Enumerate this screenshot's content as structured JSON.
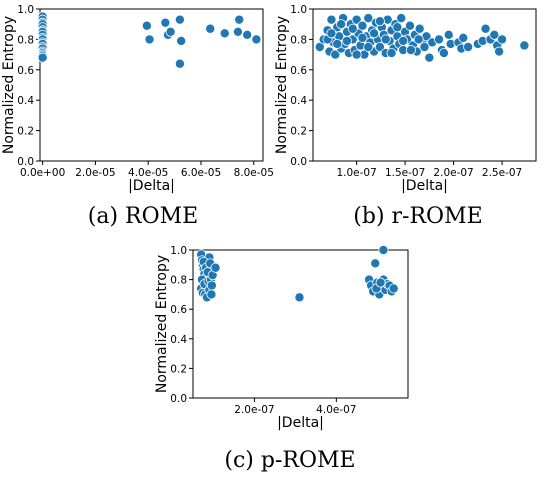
{
  "chart_data": [
    {
      "type": "scatter",
      "caption": "(a) ROME",
      "xlabel": "|Delta|",
      "ylabel": "Normalized Entropy",
      "xlim": [
        -1e-06,
        8.35e-05
      ],
      "ylim": [
        0.0,
        1.0
      ],
      "xticks": [
        0.0,
        2e-05,
        4e-05,
        6e-05,
        8e-05
      ],
      "xtick_labels": [
        "0.0e+00",
        "2.0e-05",
        "4.0e-05",
        "6.0e-05",
        "8.0e-05"
      ],
      "yticks": [
        0.0,
        0.2,
        0.4,
        0.6,
        0.8,
        1.0
      ],
      "ytick_labels": [
        "0.0",
        "0.2",
        "0.4",
        "0.6",
        "0.8",
        "1.0"
      ],
      "color": "#1f77b4",
      "points": [
        [
          0.0,
          0.95
        ],
        [
          0.0,
          0.93
        ],
        [
          0.0,
          0.91
        ],
        [
          0.0,
          0.9
        ],
        [
          0.0,
          0.88
        ],
        [
          0.0,
          0.86
        ],
        [
          0.0,
          0.85
        ],
        [
          0.0,
          0.83
        ],
        [
          0.0,
          0.81
        ],
        [
          0.0,
          0.8
        ],
        [
          0.0,
          0.78
        ],
        [
          0.0,
          0.77
        ],
        [
          0.0,
          0.75
        ],
        [
          0.0,
          0.74
        ],
        [
          0.0,
          0.72
        ],
        [
          0.0,
          0.71
        ],
        [
          0.0,
          0.7
        ],
        [
          0.0,
          0.69
        ],
        [
          0.0,
          0.68
        ],
        [
          3.95e-05,
          0.89
        ],
        [
          4.05e-05,
          0.8
        ],
        [
          4.65e-05,
          0.91
        ],
        [
          4.75e-05,
          0.83
        ],
        [
          4.85e-05,
          0.85
        ],
        [
          5.2e-05,
          0.93
        ],
        [
          5.25e-05,
          0.79
        ],
        [
          5.2e-05,
          0.64
        ],
        [
          6.35e-05,
          0.87
        ],
        [
          6.9e-05,
          0.84
        ],
        [
          7.4e-05,
          0.85
        ],
        [
          7.45e-05,
          0.93
        ],
        [
          7.75e-05,
          0.83
        ],
        [
          8.1e-05,
          0.8
        ]
      ]
    },
    {
      "type": "scatter",
      "caption": "(b) r-ROME",
      "xlabel": "|Delta|",
      "ylabel": "Normalized Entropy",
      "xlim": [
        5.5e-08,
        2.85e-07
      ],
      "ylim": [
        0.0,
        1.0
      ],
      "xticks": [
        1e-07,
        1.5e-07,
        2e-07,
        2.5e-07
      ],
      "xtick_labels": [
        "1.0e-07",
        "1.5e-07",
        "2.0e-07",
        "2.5e-07"
      ],
      "yticks": [
        0.0,
        0.2,
        0.4,
        0.6,
        0.8,
        1.0
      ],
      "ytick_labels": [
        "0.0",
        "0.2",
        "0.4",
        "0.6",
        "0.8",
        "1.0"
      ],
      "color": "#1f77b4",
      "points": [
        [
          6.2e-08,
          0.75
        ],
        [
          6.6e-08,
          0.8
        ],
        [
          7e-08,
          0.86
        ],
        [
          7.2e-08,
          0.72
        ],
        [
          7.4e-08,
          0.93
        ],
        [
          7.6e-08,
          0.78
        ],
        [
          7.8e-08,
          0.7
        ],
        [
          8e-08,
          0.88
        ],
        [
          8.2e-08,
          0.82
        ],
        [
          8.4e-08,
          0.74
        ],
        [
          8.6e-08,
          0.94
        ],
        [
          8.8e-08,
          0.77
        ],
        [
          9e-08,
          0.85
        ],
        [
          9.2e-08,
          0.71
        ],
        [
          9.4e-08,
          0.9
        ],
        [
          9.6e-08,
          0.8
        ],
        [
          9.8e-08,
          0.73
        ],
        [
          1e-07,
          0.93
        ],
        [
          1.02e-07,
          0.84
        ],
        [
          1.04e-07,
          0.76
        ],
        [
          1.06e-07,
          0.89
        ],
        [
          1.08e-07,
          0.7
        ],
        [
          1.1e-07,
          0.82
        ],
        [
          1.12e-07,
          0.94
        ],
        [
          1.14e-07,
          0.78
        ],
        [
          1.16e-07,
          0.86
        ],
        [
          1.18e-07,
          0.72
        ],
        [
          1.2e-07,
          0.91
        ],
        [
          1.22e-07,
          0.8
        ],
        [
          1.24e-07,
          0.75
        ],
        [
          1.26e-07,
          0.88
        ],
        [
          1.28e-07,
          0.83
        ],
        [
          1.3e-07,
          0.71
        ],
        [
          1.32e-07,
          0.93
        ],
        [
          1.34e-07,
          0.79
        ],
        [
          1.36e-07,
          0.86
        ],
        [
          1.38e-07,
          0.74
        ],
        [
          1.4e-07,
          0.9
        ],
        [
          1.42e-07,
          0.82
        ],
        [
          1.44e-07,
          0.77
        ],
        [
          1.46e-07,
          0.94
        ],
        [
          1.48e-07,
          0.73
        ],
        [
          1.5e-07,
          0.85
        ],
        [
          1.52e-07,
          0.8
        ],
        [
          1.55e-07,
          0.89
        ],
        [
          1.58e-07,
          0.76
        ],
        [
          1.6e-07,
          0.83
        ],
        [
          1.62e-07,
          0.72
        ],
        [
          1.65e-07,
          0.87
        ],
        [
          1.68e-07,
          0.79
        ],
        [
          1.7e-07,
          0.75
        ],
        [
          1.72e-07,
          0.82
        ],
        [
          1.75e-07,
          0.68
        ],
        [
          1.78e-07,
          0.78
        ],
        [
          1.85e-07,
          0.8
        ],
        [
          1.88e-07,
          0.73
        ],
        [
          1.9e-07,
          0.71
        ],
        [
          1.95e-07,
          0.83
        ],
        [
          1.97e-07,
          0.77
        ],
        [
          2.05e-07,
          0.78
        ],
        [
          2.08e-07,
          0.74
        ],
        [
          2.1e-07,
          0.81
        ],
        [
          2.15e-07,
          0.75
        ],
        [
          2.25e-07,
          0.77
        ],
        [
          2.3e-07,
          0.79
        ],
        [
          2.33e-07,
          0.87
        ],
        [
          2.38e-07,
          0.8
        ],
        [
          2.42e-07,
          0.83
        ],
        [
          2.45e-07,
          0.76
        ],
        [
          2.47e-07,
          0.72
        ],
        [
          2.5e-07,
          0.8
        ],
        [
          2.73e-07,
          0.76
        ],
        [
          7e-08,
          0.8
        ],
        [
          7.4e-08,
          0.84
        ],
        [
          8e-08,
          0.77
        ],
        [
          8.4e-08,
          0.9
        ],
        [
          9e-08,
          0.79
        ],
        [
          9.6e-08,
          0.87
        ],
        [
          1e-07,
          0.7
        ],
        [
          1.06e-07,
          0.81
        ],
        [
          1.12e-07,
          0.75
        ],
        [
          1.18e-07,
          0.84
        ],
        [
          1.24e-07,
          0.92
        ],
        [
          1.3e-07,
          0.8
        ],
        [
          1.36e-07,
          0.71
        ],
        [
          1.42e-07,
          0.88
        ],
        [
          1.48e-07,
          0.79
        ],
        [
          1.56e-07,
          0.73
        ],
        [
          1.64e-07,
          0.8
        ]
      ]
    },
    {
      "type": "scatter",
      "caption": "(c) p-ROME",
      "xlabel": "|Delta|",
      "ylabel": "Normalized Entropy",
      "xlim": [
        5e-08,
        5.75e-07
      ],
      "ylim": [
        0.0,
        1.0
      ],
      "xticks": [
        2e-07,
        4e-07
      ],
      "xtick_labels": [
        "2.0e-07",
        "4.0e-07"
      ],
      "yticks": [
        0.0,
        0.2,
        0.4,
        0.6,
        0.8,
        1.0
      ],
      "ytick_labels": [
        "0.0",
        "0.2",
        "0.4",
        "0.6",
        "0.8",
        "1.0"
      ],
      "color": "#1f77b4",
      "points": [
        [
          7e-08,
          0.97
        ],
        [
          7.2e-08,
          0.93
        ],
        [
          7.4e-08,
          0.9
        ],
        [
          7.6e-08,
          0.87
        ],
        [
          7.8e-08,
          0.84
        ],
        [
          8e-08,
          0.81
        ],
        [
          8.2e-08,
          0.78
        ],
        [
          8.4e-08,
          0.75
        ],
        [
          8.6e-08,
          0.72
        ],
        [
          8.8e-08,
          0.69
        ],
        [
          9e-08,
          0.95
        ],
        [
          9.2e-08,
          0.82
        ],
        [
          7e-08,
          0.74
        ],
        [
          7.2e-08,
          0.8
        ],
        [
          7.4e-08,
          0.71
        ],
        [
          7.6e-08,
          0.92
        ],
        [
          7.8e-08,
          0.77
        ],
        [
          8e-08,
          0.7
        ],
        [
          8.2e-08,
          0.88
        ],
        [
          8.4e-08,
          0.68
        ],
        [
          8.6e-08,
          0.85
        ],
        [
          8.8e-08,
          0.79
        ],
        [
          9e-08,
          0.73
        ],
        [
          9.2e-08,
          0.91
        ],
        [
          9.4e-08,
          0.8
        ],
        [
          9.6e-08,
          0.76
        ],
        [
          9.8e-08,
          0.83
        ],
        [
          9.5e-08,
          0.7
        ],
        [
          1.05e-07,
          0.88
        ],
        [
          3.1e-07,
          0.68
        ],
        [
          4.8e-07,
          0.8
        ],
        [
          4.85e-07,
          0.76
        ],
        [
          4.9e-07,
          0.72
        ],
        [
          4.95e-07,
          0.91
        ],
        [
          5e-07,
          0.78
        ],
        [
          5.05e-07,
          0.7
        ],
        [
          5.1e-07,
          0.75
        ],
        [
          5.15e-07,
          0.8
        ],
        [
          5.2e-07,
          0.73
        ],
        [
          5.25e-07,
          0.77
        ],
        [
          5.3e-07,
          0.76
        ],
        [
          5.35e-07,
          0.72
        ],
        [
          5.15e-07,
          1.0
        ],
        [
          5.4e-07,
          0.74
        ],
        [
          4.98e-07,
          0.74
        ],
        [
          5.08e-07,
          0.78
        ]
      ]
    }
  ]
}
